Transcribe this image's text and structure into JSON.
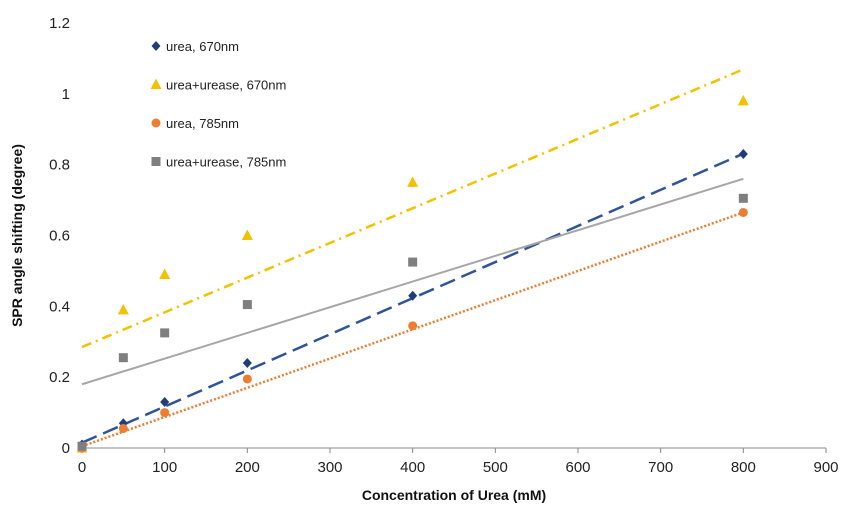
{
  "chart_data": {
    "type": "scatter",
    "xlabel": "Concentration of Urea (mM)",
    "ylabel": "SPR angle shifting (degree)",
    "xlim": [
      0,
      900
    ],
    "ylim": [
      0,
      1.2
    ],
    "xticks": [
      0,
      100,
      200,
      300,
      400,
      500,
      600,
      700,
      800,
      900
    ],
    "yticks": [
      0,
      0.2,
      0.4,
      0.6,
      0.8,
      1,
      1.2
    ],
    "xtick_labels": [
      "0",
      "100",
      "200",
      "300",
      "400",
      "500",
      "600",
      "700",
      "800",
      "900"
    ],
    "ytick_labels": [
      "0",
      "0.2",
      "0.4",
      "0.6",
      "0.8",
      "1",
      "1.2"
    ],
    "grid": false,
    "legend_position": "top-left",
    "series": [
      {
        "name": "urea, 670nm",
        "marker": "diamond",
        "color": "#1f3d7a",
        "x": [
          0,
          50,
          100,
          200,
          400,
          800
        ],
        "y": [
          0.01,
          0.07,
          0.13,
          0.24,
          0.43,
          0.83
        ],
        "trendline": {
          "style": "dashed",
          "color": "#2f5597",
          "intercept": 0.015,
          "slope": 0.00102
        }
      },
      {
        "name": "urea+urease, 670nm",
        "marker": "triangle",
        "color": "#f2c200",
        "x": [
          0,
          50,
          100,
          200,
          400,
          800
        ],
        "y": [
          0.0,
          0.39,
          0.49,
          0.6,
          0.75,
          0.98
        ],
        "trendline": {
          "style": "dashdot",
          "color": "#f2c200",
          "intercept": 0.285,
          "slope": 0.00098
        }
      },
      {
        "name": "urea, 785nm",
        "marker": "circle",
        "color": "#ed7d31",
        "x": [
          0,
          50,
          100,
          200,
          400,
          800
        ],
        "y": [
          0.0,
          0.055,
          0.1,
          0.195,
          0.345,
          0.665
        ],
        "trendline": {
          "style": "dotted",
          "color": "#ed7d31",
          "intercept": 0.005,
          "slope": 0.000825
        }
      },
      {
        "name": "urea+urease, 785nm",
        "marker": "square",
        "color": "#7f7f7f",
        "x": [
          0,
          50,
          100,
          200,
          400,
          800
        ],
        "y": [
          0.005,
          0.255,
          0.325,
          0.405,
          0.525,
          0.705
        ],
        "trendline": {
          "style": "solid",
          "color": "#a6a6a6",
          "intercept": 0.18,
          "slope": 0.000725
        }
      }
    ]
  }
}
